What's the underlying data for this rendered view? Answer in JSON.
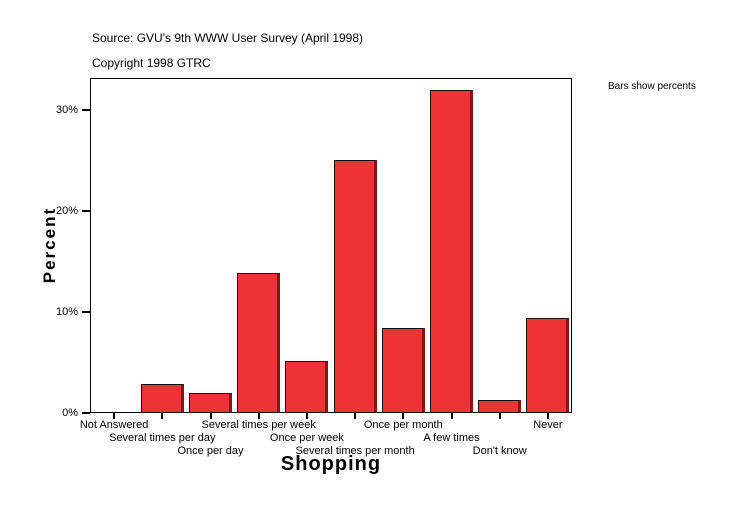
{
  "header": {
    "source": "Source: GVU's 9th WWW User Survey (April 1998)",
    "copyright": "Copyright 1998 GTRC"
  },
  "note": "Bars show percents",
  "chart_data": {
    "type": "bar",
    "title": "",
    "xlabel": "Shopping",
    "ylabel": "Percent",
    "categories": [
      "Not Answered",
      "Several times per day",
      "Once per day",
      "Several times per week",
      "Once per week",
      "Several times per month",
      "Once per month",
      "A few times",
      "Don't know",
      "Never"
    ],
    "values": [
      0,
      2.9,
      2.0,
      13.9,
      5.2,
      25.1,
      8.4,
      32.0,
      1.3,
      9.4
    ],
    "yticks": [
      {
        "value": 0,
        "label": "0%"
      },
      {
        "value": 10,
        "label": "10%"
      },
      {
        "value": 20,
        "label": "20%"
      },
      {
        "value": 30,
        "label": "30%"
      }
    ],
    "ylim": [
      0,
      33.2
    ],
    "grid": false,
    "legend_position": "none",
    "bar_color": "#ee3336",
    "bar_edge_color": "#111111",
    "bar_shade_color": "#8b1015",
    "frame_color": "#000000",
    "annotation": "Bars show percents"
  }
}
